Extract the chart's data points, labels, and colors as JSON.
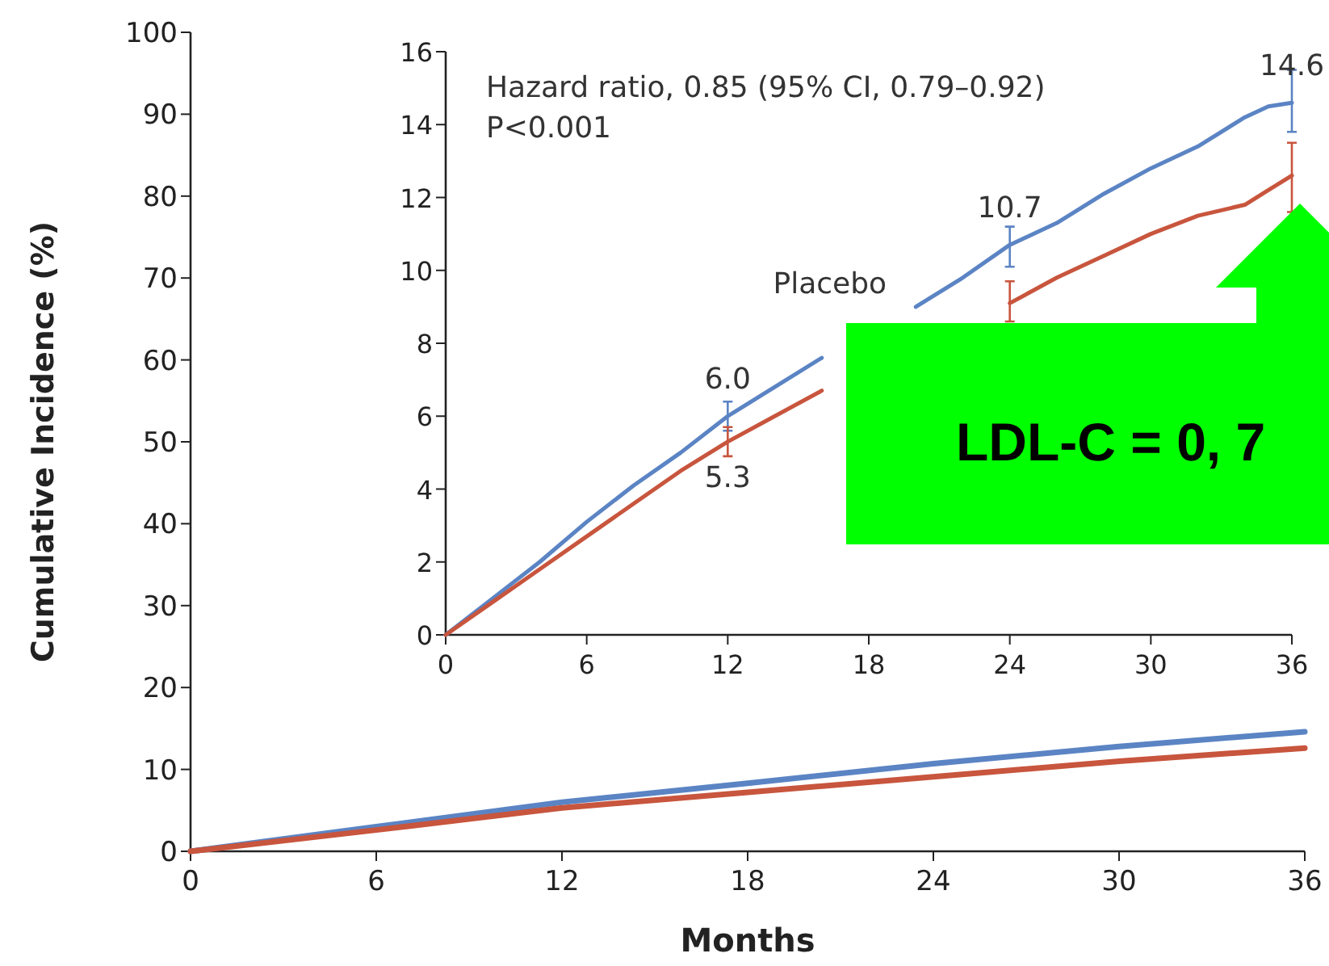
{
  "chart_data": [
    {
      "type": "line",
      "xlabel": "Months",
      "ylabel": "Cumulative Incidence (%)",
      "xlim": [
        0,
        36
      ],
      "xticks": [
        0,
        6,
        12,
        18,
        24,
        30,
        36
      ],
      "ylim": [
        0,
        100
      ],
      "yticks": [
        0,
        10,
        20,
        30,
        40,
        50,
        60,
        70,
        80,
        90,
        100
      ],
      "grid": false,
      "legend": false,
      "x": [
        0,
        6,
        12,
        18,
        24,
        30,
        36
      ],
      "series": [
        {
          "color": "#5b84c4",
          "values": [
            0,
            3.0,
            6.0,
            8.3,
            10.7,
            12.8,
            14.6
          ]
        },
        {
          "color": "#c8553d",
          "values": [
            0,
            2.6,
            5.3,
            7.2,
            9.1,
            11.0,
            12.6
          ]
        }
      ],
      "annotations": [
        "LDL-C = 0, 7"
      ]
    },
    {
      "type": "line",
      "xlim": [
        0,
        36
      ],
      "xticks": [
        0,
        6,
        12,
        18,
        24,
        30,
        36
      ],
      "ylim": [
        0,
        16
      ],
      "yticks": [
        0,
        2,
        4,
        6,
        8,
        10,
        12,
        14,
        16
      ],
      "grid": false,
      "legend": false,
      "x": [
        0,
        2,
        4,
        6,
        8,
        10,
        12,
        14,
        16,
        18,
        20,
        22,
        24,
        26,
        28,
        30,
        32,
        34,
        35,
        36
      ],
      "series": [
        {
          "name": "Placebo",
          "color": "#5b84c4",
          "values": [
            0,
            1.0,
            2.0,
            3.1,
            4.1,
            5.0,
            6.0,
            6.8,
            7.6,
            null,
            9.0,
            9.8,
            10.7,
            11.3,
            12.1,
            12.8,
            13.4,
            14.2,
            14.5,
            14.6
          ],
          "errors": [
            null,
            null,
            null,
            null,
            null,
            null,
            [
              5.6,
              6.4
            ],
            null,
            null,
            null,
            null,
            null,
            [
              10.1,
              11.2
            ],
            null,
            null,
            null,
            null,
            null,
            null,
            [
              13.8,
              15.5
            ]
          ]
        },
        {
          "color": "#c8553d",
          "values": [
            0,
            0.9,
            1.8,
            2.7,
            3.6,
            4.5,
            5.3,
            6.0,
            6.7,
            null,
            null,
            null,
            9.1,
            9.8,
            10.4,
            11.0,
            11.5,
            11.8,
            12.2,
            12.6
          ],
          "errors": [
            null,
            null,
            null,
            null,
            null,
            null,
            [
              4.9,
              5.7
            ],
            null,
            null,
            null,
            null,
            null,
            [
              8.6,
              9.7
            ],
            null,
            null,
            null,
            null,
            null,
            null,
            [
              11.6,
              13.5
            ]
          ]
        }
      ],
      "annotations": [
        "Hazard ratio, 0.85 (95% CI, 0.79–0.92)",
        "P<0.001",
        {
          "text": "6.0",
          "x": 12,
          "y": 6.0
        },
        {
          "text": "5.3",
          "x": 12,
          "y": 5.3
        },
        {
          "text": "10.7",
          "x": 24,
          "y": 10.7
        },
        {
          "text": "14.6",
          "x": 36,
          "y": 14.6
        }
      ]
    }
  ]
}
